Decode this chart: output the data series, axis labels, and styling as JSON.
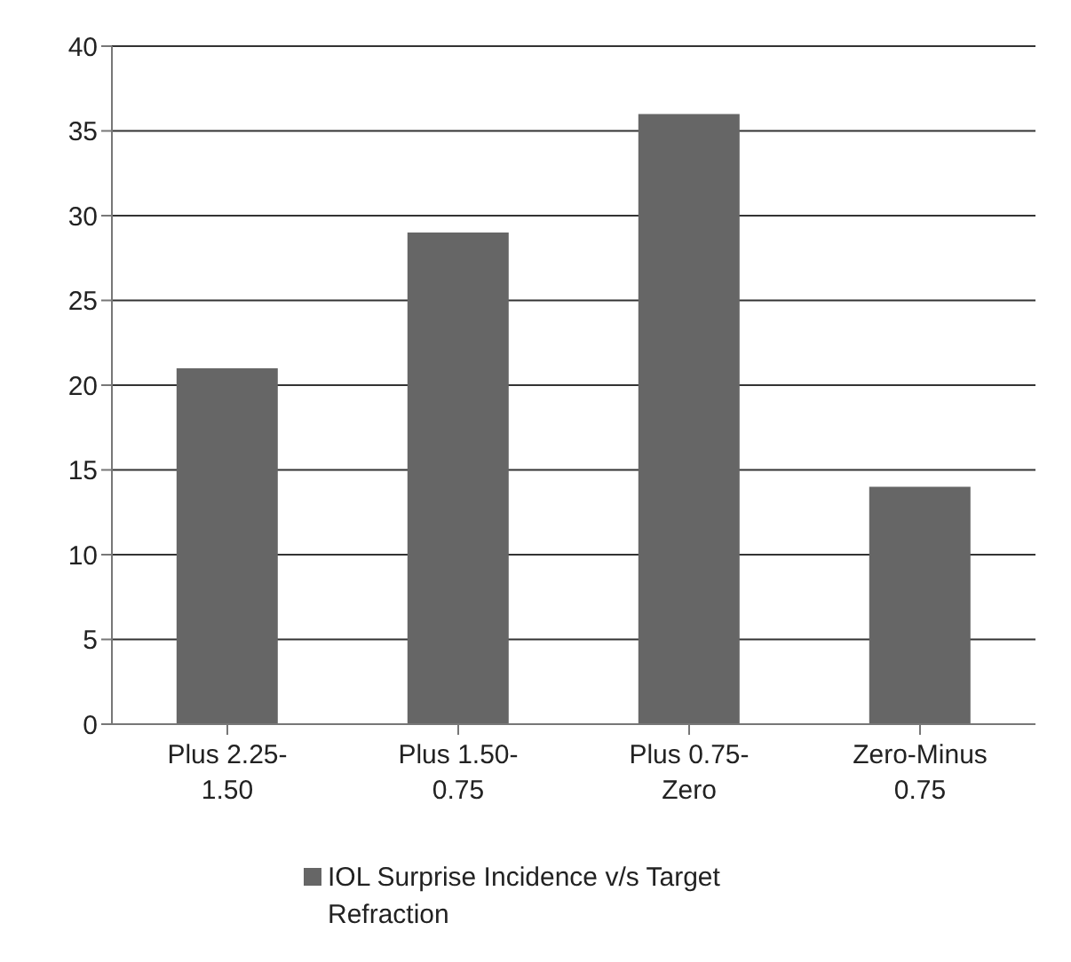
{
  "chart_data": {
    "type": "bar",
    "categories": [
      "Plus 2.25-1.50",
      "Plus 1.50-0.75",
      "Plus 0.75-Zero",
      "Zero-Minus 0.75"
    ],
    "series": [
      {
        "name": "IOL Surprise Incidence v/s Target Refraction",
        "color": "#666666",
        "values": [
          21,
          29,
          36,
          14
        ]
      }
    ],
    "ylim": [
      0,
      40
    ],
    "yticks": [
      0,
      5,
      10,
      15,
      20,
      25,
      30,
      35,
      40
    ],
    "grid": "y",
    "legend": "bottom"
  }
}
